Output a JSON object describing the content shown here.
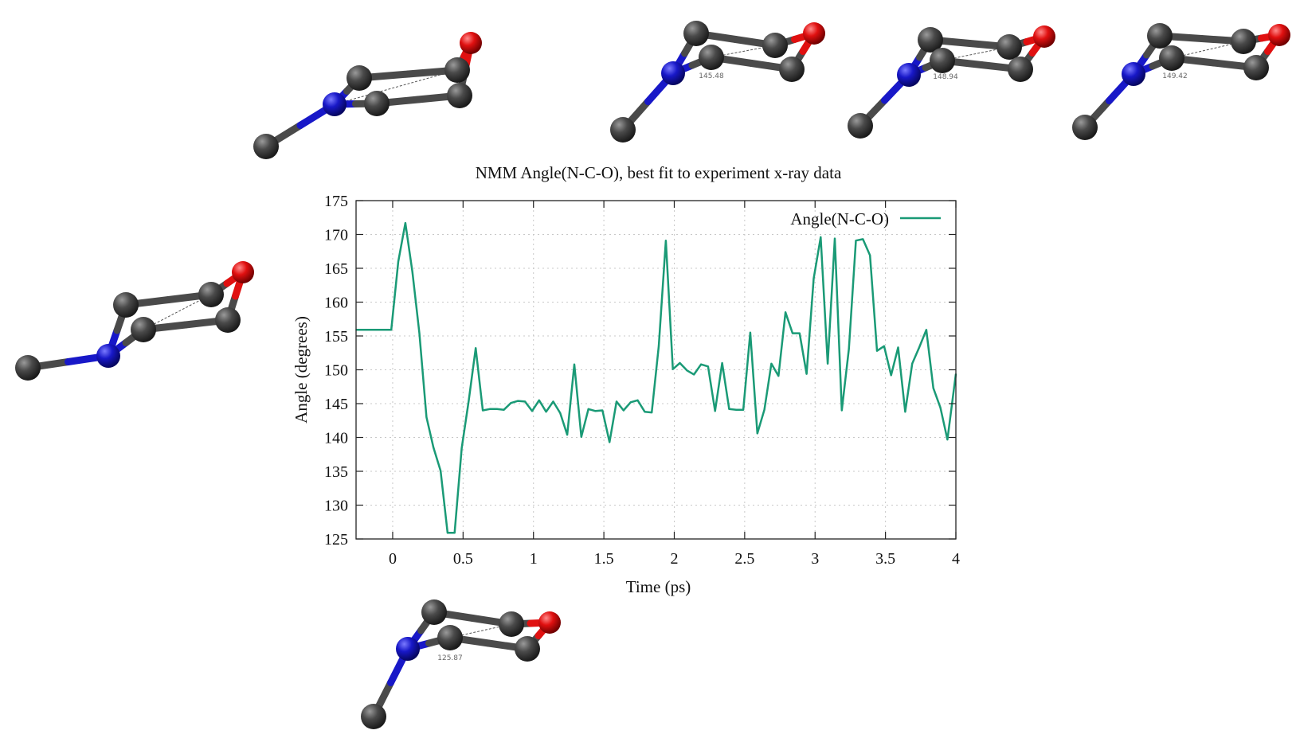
{
  "chart_data": {
    "type": "line",
    "title": "NMM Angle(N-C-O), best fit to experiment x-ray data",
    "xlabel": "Time (ps)",
    "ylabel": "Angle (degrees)",
    "xlim": [
      -0.26,
      4.0
    ],
    "ylim": [
      125,
      175
    ],
    "xticks": [
      "0",
      "0.5",
      "1",
      "1.5",
      "2",
      "2.5",
      "3",
      "3.5",
      "4"
    ],
    "yticks": [
      "125",
      "130",
      "135",
      "140",
      "145",
      "150",
      "155",
      "160",
      "165",
      "170",
      "175"
    ],
    "grid": true,
    "legend_position": "top-right",
    "series": [
      {
        "name": "Angle(N-C-O)",
        "color": "#1a9a76",
        "x": [
          -0.26,
          -0.01,
          0.04,
          0.09,
          0.14,
          0.19,
          0.24,
          0.29,
          0.34,
          0.39,
          0.44,
          0.49,
          0.54,
          0.59,
          0.64,
          0.69,
          0.74,
          0.79,
          0.84,
          0.89,
          0.94,
          0.99,
          1.04,
          1.09,
          1.14,
          1.19,
          1.24,
          1.29,
          1.34,
          1.39,
          1.44,
          1.49,
          1.54,
          1.59,
          1.64,
          1.69,
          1.74,
          1.79,
          1.84,
          1.89,
          1.94,
          1.99,
          2.04,
          2.09,
          2.14,
          2.19,
          2.24,
          2.29,
          2.34,
          2.39,
          2.44,
          2.49,
          2.54,
          2.59,
          2.64,
          2.69,
          2.74,
          2.79,
          2.84,
          2.89,
          2.94,
          2.99,
          3.04,
          3.09,
          3.14,
          3.19,
          3.24,
          3.29,
          3.34,
          3.39,
          3.44,
          3.49,
          3.54,
          3.59,
          3.64,
          3.69,
          3.74,
          3.79,
          3.84,
          3.89,
          3.94,
          4.0
        ],
        "y": [
          155.9,
          155.9,
          166.0,
          171.7,
          164.5,
          155.4,
          143.0,
          138.5,
          135.1,
          125.9,
          125.9,
          138.4,
          145.4,
          153.2,
          144.0,
          144.2,
          144.2,
          144.1,
          145.1,
          145.4,
          145.3,
          143.9,
          145.5,
          143.8,
          145.3,
          143.6,
          140.4,
          150.8,
          140.1,
          144.2,
          143.9,
          144.0,
          139.3,
          145.3,
          144.0,
          145.2,
          145.5,
          143.8,
          143.7,
          153.5,
          169.1,
          150.1,
          151.0,
          149.9,
          149.3,
          150.8,
          150.5,
          143.9,
          151.0,
          144.2,
          144.1,
          144.1,
          155.5,
          140.6,
          144.1,
          150.9,
          149.1,
          158.5,
          155.4,
          155.4,
          149.4,
          163.5,
          169.6,
          150.9,
          169.4,
          144.0,
          153.1,
          169.1,
          169.3,
          166.9,
          152.8,
          153.5,
          149.2,
          153.3,
          143.8,
          150.9,
          153.3,
          155.9,
          147.3,
          144.4,
          139.7,
          149.4
        ]
      }
    ]
  },
  "molecules": [
    {
      "id": "top-left",
      "label": ""
    },
    {
      "id": "top-center",
      "label": "145.48"
    },
    {
      "id": "top-mid-right",
      "label": "148.94"
    },
    {
      "id": "top-right",
      "label": "149.42"
    },
    {
      "id": "left",
      "label": ""
    },
    {
      "id": "bottom",
      "label": "125.87"
    }
  ],
  "colors": {
    "series": "#1a9a76",
    "carbon": "#4a4a4a",
    "nitrogen": "#1818c8",
    "oxygen": "#e01010"
  }
}
